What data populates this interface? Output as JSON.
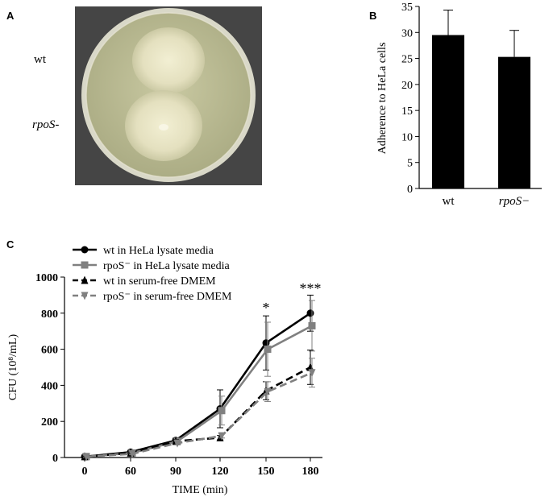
{
  "panels": {
    "a_letter": "A",
    "b_letter": "B",
    "c_letter": "C"
  },
  "panel_a": {
    "labels": [
      "wt",
      "rpoS-"
    ]
  },
  "chart_data": [
    {
      "type": "bar",
      "panel": "B",
      "categories": [
        "wt",
        "rpoS−"
      ],
      "values": [
        29.5,
        25.3
      ],
      "errors": [
        4.8,
        5.1
      ],
      "ylabel": "Adherence to  HeLa cells",
      "ylim": [
        0,
        35
      ],
      "yticks": [
        0,
        5,
        10,
        15,
        20,
        25,
        30,
        35
      ],
      "bar_color": "#000000"
    },
    {
      "type": "line",
      "panel": "C",
      "x": [
        0,
        60,
        90,
        120,
        150,
        180
      ],
      "xlabel": "TIME (min)",
      "ylabel": "CFU (10⁸/mL)",
      "ylim": [
        0,
        1000
      ],
      "yticks": [
        0,
        200,
        400,
        600,
        800,
        1000
      ],
      "annotations": [
        {
          "x": 150,
          "text": "*"
        },
        {
          "x": 180,
          "text": "***"
        }
      ],
      "series": [
        {
          "name": "wt in HeLa lysate media",
          "values": [
            5,
            30,
            95,
            270,
            635,
            800
          ],
          "errors": [
            5,
            8,
            12,
            105,
            150,
            100
          ],
          "color": "#000000",
          "dash": false,
          "marker": "circle"
        },
        {
          "name": "rpoS⁻ in HeLa lysate media",
          "values": [
            5,
            25,
            90,
            260,
            600,
            730
          ],
          "errors": [
            5,
            8,
            12,
            80,
            150,
            140
          ],
          "color": "#808080",
          "dash": false,
          "marker": "square"
        },
        {
          "name": "wt in serum-free DMEM",
          "values": [
            5,
            25,
            90,
            110,
            370,
            500
          ],
          "errors": [
            5,
            5,
            10,
            12,
            50,
            95
          ],
          "color": "#000000",
          "dash": true,
          "marker": "triangle-up"
        },
        {
          "name": "rpoS⁻ in serum-free DMEM",
          "values": [
            5,
            20,
            80,
            120,
            365,
            470
          ],
          "errors": [
            5,
            5,
            10,
            12,
            55,
            80
          ],
          "color": "#808080",
          "dash": true,
          "marker": "triangle-down"
        }
      ],
      "legend": "top-left"
    }
  ]
}
